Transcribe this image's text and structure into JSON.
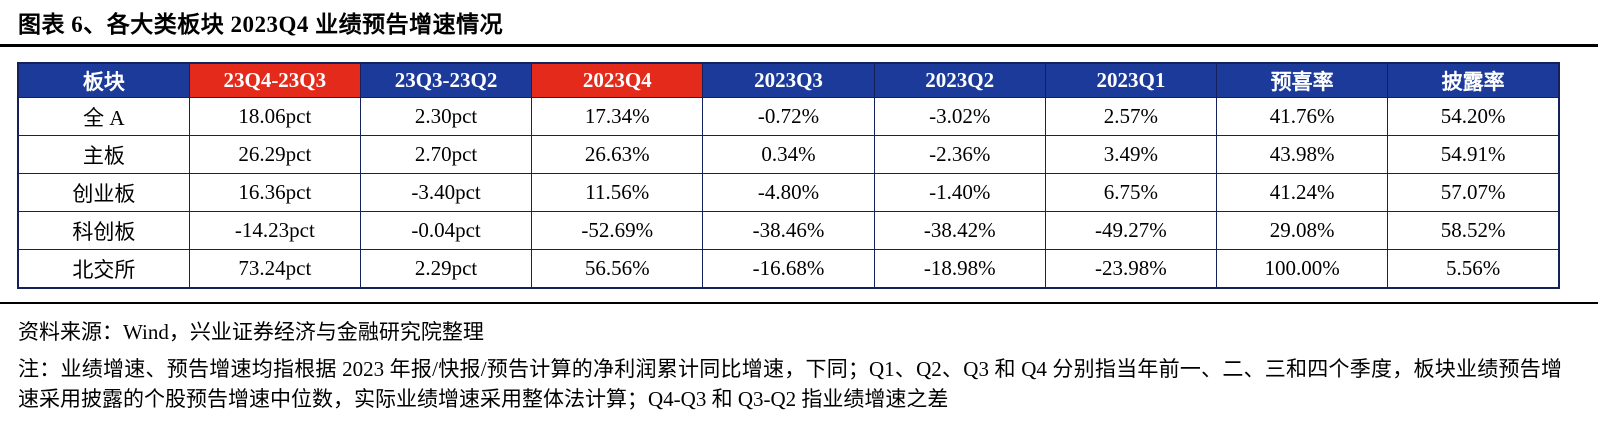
{
  "title": "图表 6、各大类板块 2023Q4 业绩预告增速情况",
  "source": "资料来源：Wind，兴业证券经济与金融研究院整理",
  "note": "注：业绩增速、预告增速均指根据 2023 年报/快报/预告计算的净利润累计同比增速，下同；Q1、Q2、Q3 和 Q4 分别指当年前一、二、三和四个季度，板块业绩预告增速采用披露的个股预告增速中位数，实际业绩增速采用整体法计算；Q4-Q3 和 Q3-Q2 指业绩增速之差",
  "colors": {
    "header_blue": "#1b3a9a",
    "header_red": "#e42a1a",
    "grid_border": "#14215c",
    "title_rule": "#000000"
  },
  "chart_data": {
    "type": "table",
    "title": "图表 6、各大类板块 2023Q4 业绩预告增速情况",
    "columns": [
      "板块",
      "23Q4-23Q3",
      "23Q3-23Q2",
      "2023Q4",
      "2023Q3",
      "2023Q2",
      "2023Q1",
      "预喜率",
      "披露率"
    ],
    "red_header_columns": [
      1,
      3
    ],
    "rows": [
      [
        "全 A",
        "18.06pct",
        "2.30pct",
        "17.34%",
        "-0.72%",
        "-3.02%",
        "2.57%",
        "41.76%",
        "54.20%"
      ],
      [
        "主板",
        "26.29pct",
        "2.70pct",
        "26.63%",
        "0.34%",
        "-2.36%",
        "3.49%",
        "43.98%",
        "54.91%"
      ],
      [
        "创业板",
        "16.36pct",
        "-3.40pct",
        "11.56%",
        "-4.80%",
        "-1.40%",
        "6.75%",
        "41.24%",
        "57.07%"
      ],
      [
        "科创板",
        "-14.23pct",
        "-0.04pct",
        "-52.69%",
        "-38.46%",
        "-38.42%",
        "-49.27%",
        "29.08%",
        "58.52%"
      ],
      [
        "北交所",
        "73.24pct",
        "2.29pct",
        "56.56%",
        "-16.68%",
        "-18.98%",
        "-23.98%",
        "100.00%",
        "5.56%"
      ]
    ]
  }
}
